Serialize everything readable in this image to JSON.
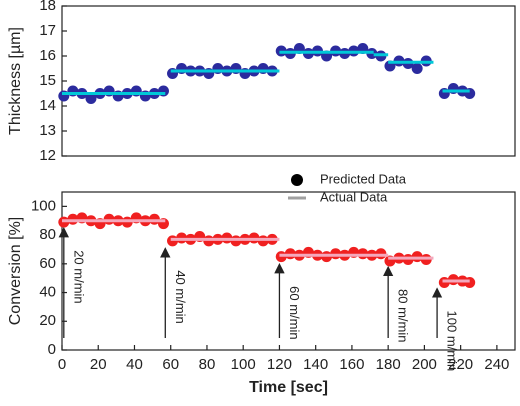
{
  "chart_data": [
    {
      "type": "scatter",
      "ylabel": "Thickness [µm]",
      "xlim": [
        0,
        250
      ],
      "ylim": [
        12,
        18
      ],
      "yticks": [
        12,
        13,
        14,
        15,
        16,
        17,
        18
      ],
      "series": [
        {
          "color": "#2b2b9e",
          "x": [
            1,
            6,
            11,
            16,
            21,
            26,
            31,
            36,
            41,
            46,
            51,
            56,
            61,
            66,
            71,
            76,
            81,
            86,
            91,
            96,
            101,
            106,
            111,
            116,
            121,
            126,
            131,
            136,
            141,
            146,
            151,
            156,
            161,
            166,
            171,
            176,
            181,
            186,
            191,
            196,
            201,
            211,
            216,
            221,
            225
          ],
          "values": [
            14.4,
            14.6,
            14.5,
            14.3,
            14.5,
            14.6,
            14.4,
            14.5,
            14.6,
            14.4,
            14.5,
            14.6,
            15.3,
            15.5,
            15.4,
            15.4,
            15.3,
            15.5,
            15.4,
            15.5,
            15.3,
            15.4,
            15.5,
            15.4,
            16.2,
            16.1,
            16.3,
            16.1,
            16.2,
            16.0,
            16.2,
            16.1,
            16.2,
            16.3,
            16.1,
            16.0,
            15.6,
            15.8,
            15.7,
            15.5,
            15.8,
            14.5,
            14.7,
            14.6,
            14.5
          ]
        },
        {
          "color": "#00c8d8",
          "line": true,
          "x": [
            0,
            57,
            57,
            60,
            120,
            120,
            120,
            172,
            172,
            172,
            180,
            180,
            180,
            205,
            205,
            210,
            225
          ],
          "values": [
            14.5,
            14.5,
            null,
            15.4,
            15.4,
            null,
            16.15,
            16.15,
            null,
            16.05,
            16.05,
            null,
            15.75,
            15.75,
            null,
            14.6,
            14.6
          ]
        }
      ]
    },
    {
      "type": "scatter",
      "ylabel": "Conversion [%]",
      "xlabel": "Time [sec]",
      "xlim": [
        0,
        250
      ],
      "xticks": [
        0,
        20,
        40,
        60,
        80,
        100,
        120,
        140,
        160,
        180,
        200,
        220,
        240
      ],
      "ylim": [
        0,
        110
      ],
      "yticks": [
        0,
        20,
        40,
        60,
        80,
        100
      ],
      "legend": "top-right",
      "legend_marker_colors": [
        "#000000",
        "#a0a0a0"
      ],
      "series": [
        {
          "name": "Predicted Data",
          "color": "#f02020",
          "x": [
            1,
            6,
            11,
            16,
            21,
            26,
            31,
            36,
            41,
            46,
            51,
            56,
            61,
            66,
            71,
            76,
            81,
            86,
            91,
            96,
            101,
            106,
            111,
            116,
            121,
            126,
            131,
            136,
            141,
            146,
            151,
            156,
            161,
            166,
            171,
            176,
            181,
            186,
            191,
            196,
            201,
            211,
            216,
            221,
            225
          ],
          "values": [
            89,
            91,
            92,
            90,
            88,
            91,
            90,
            89,
            92,
            90,
            91,
            88,
            76,
            78,
            77,
            79,
            76,
            77,
            78,
            76,
            77,
            78,
            76,
            77,
            65,
            67,
            66,
            68,
            66,
            65,
            67,
            66,
            68,
            67,
            66,
            67,
            62,
            64,
            63,
            65,
            63,
            47,
            49,
            48,
            47
          ]
        },
        {
          "name": "Actual Data",
          "color": "#f4a8bc",
          "line": true,
          "x": [
            0,
            57,
            57,
            60,
            120,
            120,
            120,
            180,
            180,
            180,
            205,
            205,
            210,
            225
          ],
          "values": [
            90,
            90,
            null,
            77,
            77,
            null,
            66,
            66,
            null,
            64,
            64,
            null,
            48,
            48
          ]
        }
      ],
      "annotations": [
        {
          "x": 1,
          "y": 82,
          "text": "20 m/min"
        },
        {
          "x": 57,
          "y": 68,
          "text": "40 m/min"
        },
        {
          "x": 120,
          "y": 57,
          "text": "60 m/min"
        },
        {
          "x": 180,
          "y": 55,
          "text": "80 m/min"
        },
        {
          "x": 207,
          "y": 40,
          "text": "100 m/min"
        }
      ]
    }
  ]
}
